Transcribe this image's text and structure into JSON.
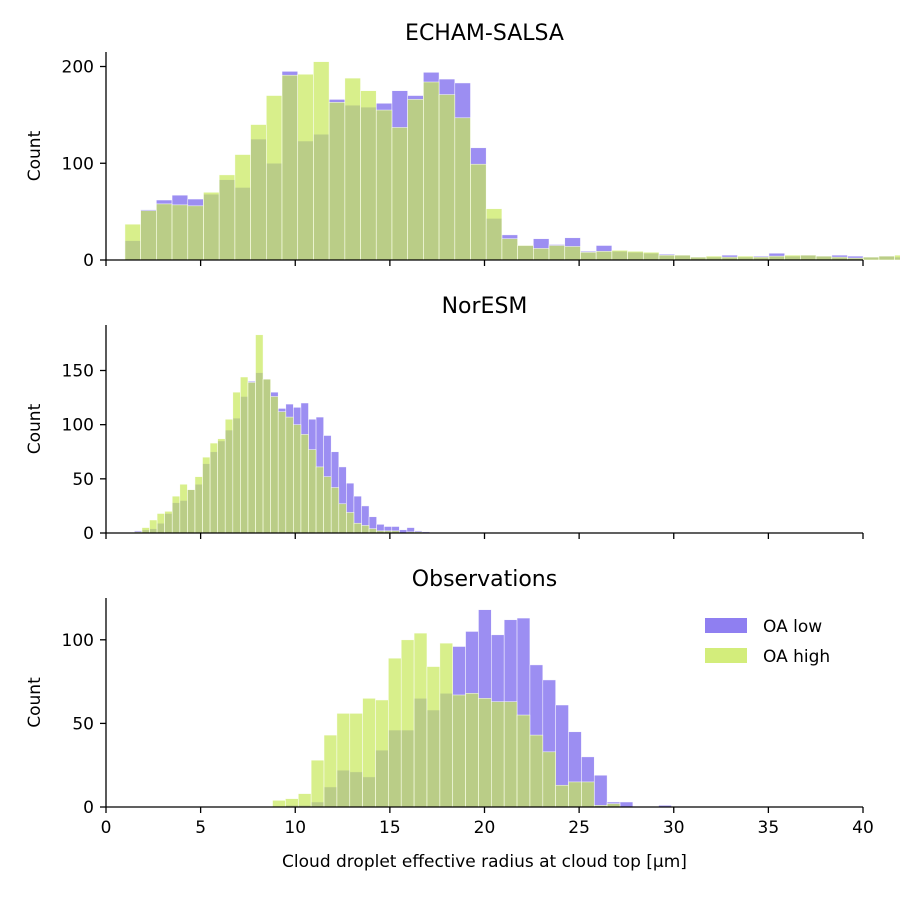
{
  "colors": {
    "oa_low": "#7b68ee",
    "oa_high": "#c8e85a",
    "overlap": "#a9af90"
  },
  "chart_data": [
    {
      "type": "bar",
      "title": "ECHAM-SALSA",
      "xlabel": "",
      "ylabel": "Count",
      "xlim": [
        0,
        40
      ],
      "ylim": [
        0,
        215
      ],
      "xticks": [
        0,
        5,
        10,
        15,
        20,
        25,
        30,
        35,
        40
      ],
      "xtick_labels_visible": false,
      "yticks": [
        0,
        100,
        200
      ],
      "bin_start": 1.0,
      "bin_width": 0.83,
      "series": [
        {
          "name": "OA low",
          "values": [
            20,
            52,
            62,
            67,
            63,
            68,
            83,
            75,
            125,
            100,
            195,
            123,
            130,
            166,
            160,
            158,
            162,
            175,
            170,
            194,
            187,
            183,
            116,
            43,
            26,
            15,
            22,
            16,
            23,
            9,
            15,
            9,
            8,
            7,
            6,
            5,
            3,
            3,
            5,
            3,
            4,
            7,
            4,
            5,
            4,
            5,
            4,
            3,
            4,
            3,
            4
          ]
        },
        {
          "name": "OA high",
          "values": [
            37,
            51,
            58,
            57,
            56,
            70,
            88,
            109,
            140,
            170,
            191,
            192,
            205,
            163,
            188,
            175,
            155,
            137,
            166,
            184,
            171,
            147,
            99,
            53,
            22,
            15,
            12,
            15,
            14,
            8,
            9,
            10,
            9,
            8,
            5,
            5,
            3,
            4,
            3,
            4,
            3,
            4,
            5,
            5,
            4,
            3,
            2,
            3,
            4,
            5,
            4
          ]
        }
      ]
    },
    {
      "type": "bar",
      "title": "NorESM",
      "xlabel": "",
      "ylabel": "Count",
      "xlim": [
        0,
        40
      ],
      "ylim": [
        0,
        192
      ],
      "xticks": [
        0,
        5,
        10,
        15,
        20,
        25,
        30,
        35,
        40
      ],
      "xtick_labels_visible": false,
      "yticks": [
        0,
        50,
        100,
        150
      ],
      "bin_start": 1.5,
      "bin_width": 0.4,
      "series": [
        {
          "name": "OA low",
          "values": [
            2,
            3,
            4,
            9,
            18,
            28,
            30,
            40,
            45,
            64,
            75,
            85,
            95,
            106,
            126,
            140,
            148,
            142,
            130,
            115,
            119,
            116,
            120,
            105,
            107,
            90,
            75,
            61,
            46,
            34,
            25,
            15,
            8,
            6,
            6,
            3,
            5,
            2,
            1,
            0,
            0
          ]
        },
        {
          "name": "OA high",
          "values": [
            1,
            5,
            12,
            18,
            20,
            34,
            45,
            40,
            52,
            70,
            83,
            87,
            105,
            130,
            144,
            139,
            183,
            142,
            126,
            112,
            107,
            100,
            91,
            77,
            61,
            52,
            42,
            27,
            19,
            9,
            7,
            4,
            2,
            2,
            2,
            0,
            1,
            1,
            0,
            0,
            0
          ]
        }
      ]
    },
    {
      "type": "bar",
      "title": "Observations",
      "xlabel": "Cloud droplet effective radius at cloud top [μm]",
      "ylabel": "Count",
      "xlim": [
        0,
        40
      ],
      "ylim": [
        0,
        125
      ],
      "xticks": [
        0,
        5,
        10,
        15,
        20,
        25,
        30,
        35,
        40
      ],
      "xtick_labels_visible": true,
      "yticks": [
        0,
        50,
        100
      ],
      "legend_position": "top-right",
      "bin_start": 8.8,
      "bin_width": 0.68,
      "series": [
        {
          "name": "OA low",
          "values": [
            0,
            1,
            1,
            3,
            12,
            22,
            21,
            18,
            34,
            46,
            46,
            65,
            58,
            68,
            96,
            105,
            118,
            103,
            112,
            113,
            85,
            76,
            61,
            45,
            30,
            19,
            3,
            3,
            0,
            0,
            1,
            0
          ]
        },
        {
          "name": "OA high",
          "values": [
            4,
            5,
            8,
            28,
            43,
            56,
            56,
            65,
            64,
            89,
            100,
            104,
            84,
            98,
            67,
            68,
            65,
            63,
            63,
            55,
            43,
            33,
            13,
            15,
            15,
            1,
            2,
            0,
            0,
            0,
            0,
            0
          ]
        }
      ]
    }
  ]
}
